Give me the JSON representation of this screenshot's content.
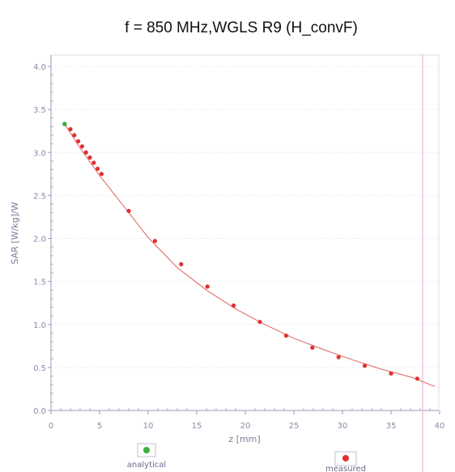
{
  "chart_data": {
    "type": "scatter",
    "title": "f = 850 MHz,WGLS R9 (H_convF)",
    "xlabel": "z [mm]",
    "ylabel": "SAR [W/kg]/W",
    "xlim": [
      0,
      40
    ],
    "ylim": [
      0,
      4.0
    ],
    "xticks": [
      "0",
      "5",
      "10",
      "15",
      "20",
      "25",
      "30",
      "35",
      "40"
    ],
    "yticks": [
      "0.0",
      "0.5",
      "1.0",
      "1.5",
      "2.0",
      "2.5",
      "3.0",
      "3.5",
      "4.0"
    ],
    "grid": true,
    "legend": "bottom",
    "series": [
      {
        "name": "analytical",
        "color": "#e06060",
        "marker_color": "#3cb040",
        "x": [
          1.4,
          3,
          5,
          8,
          10,
          13,
          16,
          19,
          22,
          25,
          28,
          31,
          34,
          37,
          39.5
        ],
        "y": [
          3.33,
          3.05,
          2.73,
          2.3,
          2.01,
          1.66,
          1.4,
          1.18,
          1.0,
          0.84,
          0.71,
          0.59,
          0.48,
          0.39,
          0.28
        ]
      },
      {
        "name": "measured",
        "color": "#e03030",
        "x": [
          2.0,
          2.4,
          2.8,
          3.2,
          3.6,
          4.0,
          4.4,
          4.8,
          5.2,
          8.0,
          10.7,
          13.4,
          16.1,
          18.8,
          21.5,
          24.2,
          26.9,
          29.6,
          32.3,
          35.0,
          37.7
        ],
        "y": [
          3.27,
          3.2,
          3.13,
          3.07,
          3.0,
          2.94,
          2.88,
          2.81,
          2.75,
          2.32,
          1.97,
          1.7,
          1.44,
          1.22,
          1.03,
          0.87,
          0.73,
          0.62,
          0.52,
          0.43,
          0.37
        ]
      }
    ]
  },
  "legend": {
    "analytical_label": "analytical",
    "measured_label": "measured"
  }
}
